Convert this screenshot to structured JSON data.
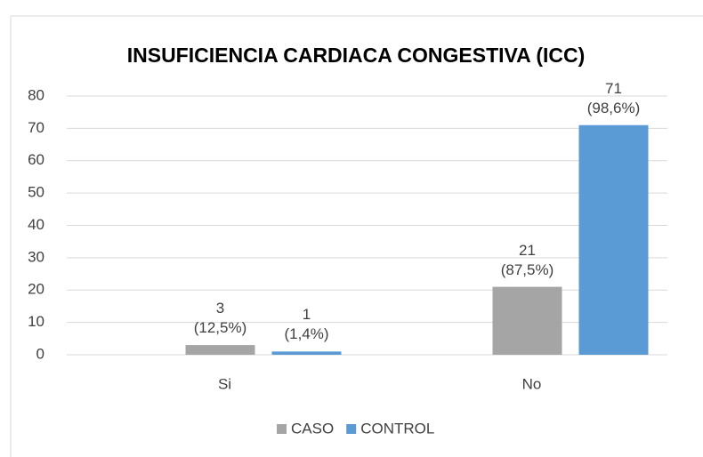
{
  "chart_data": {
    "type": "bar",
    "title": "INSUFICIENCIA CARDIACA CONGESTIVA (ICC)",
    "categories": [
      "Si",
      "No"
    ],
    "series": [
      {
        "name": "CASO",
        "color": "#a5a5a5",
        "values": [
          3,
          21
        ],
        "value_labels": [
          "3\n(12,5%)",
          "21\n(87,5%)"
        ]
      },
      {
        "name": "CONTROL",
        "color": "#5b9bd5",
        "values": [
          1,
          71
        ],
        "value_labels": [
          "1\n(1,4%)",
          "71\n(98,6%)"
        ]
      }
    ],
    "ylim": [
      0,
      80
    ],
    "yticks": [
      0,
      10,
      20,
      30,
      40,
      50,
      60,
      70,
      80
    ],
    "grid": true,
    "legend": "bottom"
  }
}
